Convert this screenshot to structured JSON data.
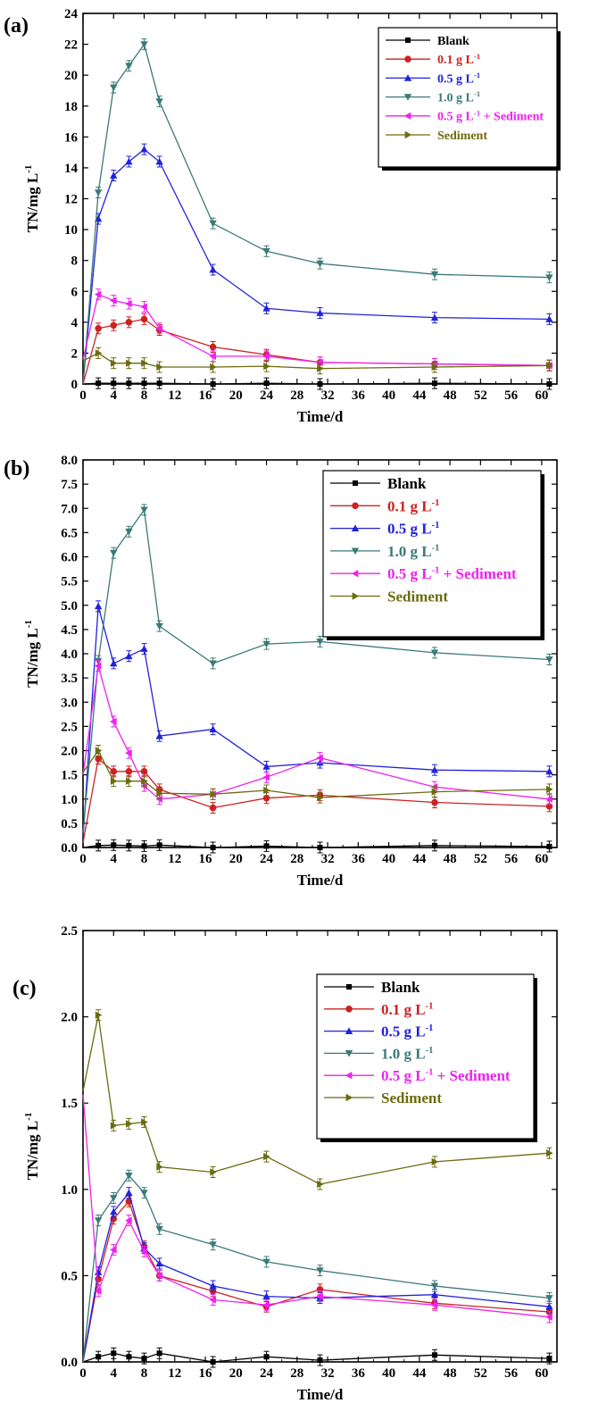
{
  "chart_data": [
    {
      "type": "line",
      "panel_label": "(a)",
      "xlabel": "Time/d",
      "ylabel": "TN/mg L",
      "ylabel_sup": "-1",
      "xlim": [
        0,
        62
      ],
      "ylim": [
        0,
        24
      ],
      "xticks": [
        0,
        4,
        8,
        12,
        16,
        20,
        24,
        28,
        32,
        36,
        40,
        44,
        48,
        52,
        56,
        60
      ],
      "yticks": [
        0,
        2,
        4,
        6,
        8,
        10,
        12,
        14,
        16,
        18,
        20,
        22,
        24
      ],
      "ytick_labels": [
        "0",
        "2",
        "4",
        "6",
        "8",
        "10",
        "12",
        "14",
        "16",
        "18",
        "20",
        "22",
        "24"
      ],
      "x": [
        0,
        2,
        4,
        6,
        8,
        10,
        17,
        24,
        31,
        46,
        61
      ],
      "legend_position": "top-right",
      "series": [
        {
          "name": "Blank",
          "sup": "",
          "color": "#000000",
          "marker": "square",
          "values": [
            0,
            0.05,
            0.05,
            0.05,
            0.05,
            0.05,
            0.0,
            0.05,
            0.0,
            0.05,
            0.0
          ]
        },
        {
          "name": "0.1 g L",
          "sup": "-1",
          "color": "#cc2222",
          "marker": "circle",
          "values": [
            0,
            3.6,
            3.8,
            4.0,
            4.2,
            3.5,
            2.4,
            1.9,
            1.4,
            1.3,
            1.2
          ]
        },
        {
          "name": "0.5 g L",
          "sup": "-1",
          "color": "#2222dd",
          "marker": "triangle-up",
          "values": [
            0,
            10.7,
            13.5,
            14.4,
            15.2,
            14.4,
            7.4,
            4.9,
            4.6,
            4.3,
            4.2
          ]
        },
        {
          "name": "1.0 g L",
          "sup": "-1",
          "color": "#3a7a78",
          "marker": "triangle-down",
          "values": [
            0,
            12.4,
            19.2,
            20.6,
            22.0,
            18.3,
            10.4,
            8.6,
            7.8,
            7.1,
            6.9
          ]
        },
        {
          "name": "0.5 g L",
          "sup": "-1",
          "suffix": " + Sediment",
          "color": "#ee22ee",
          "marker": "triangle-left",
          "values": [
            1.6,
            5.8,
            5.4,
            5.2,
            5.0,
            3.6,
            1.8,
            1.8,
            1.4,
            1.3,
            1.2
          ]
        },
        {
          "name": "Sediment",
          "sup": "",
          "color": "#6b6b10",
          "marker": "triangle-right",
          "values": [
            1.5,
            2.0,
            1.35,
            1.35,
            1.35,
            1.1,
            1.1,
            1.15,
            1.0,
            1.1,
            1.2
          ]
        }
      ]
    },
    {
      "type": "line",
      "panel_label": "(b)",
      "xlabel": "Time/d",
      "ylabel": "TN/mg L",
      "ylabel_sup": "-1",
      "xlim": [
        0,
        62
      ],
      "ylim": [
        0,
        8
      ],
      "xticks": [
        0,
        4,
        8,
        12,
        16,
        20,
        24,
        28,
        32,
        36,
        40,
        44,
        48,
        52,
        56,
        60
      ],
      "yticks": [
        0,
        0.5,
        1,
        1.5,
        2,
        2.5,
        3,
        3.5,
        4,
        4.5,
        5,
        5.5,
        6,
        6.5,
        7,
        7.5,
        8
      ],
      "ytick_labels": [
        "0.0",
        "0.5",
        "1.0",
        "1.5",
        "2.0",
        "2.5",
        "3.0",
        "3.5",
        "4.0",
        "4.5",
        "5.0",
        "5.5",
        "6.0",
        "6.5",
        "7.0",
        "7.5",
        "8.0"
      ],
      "x": [
        0,
        2,
        4,
        6,
        8,
        10,
        17,
        24,
        31,
        46,
        61
      ],
      "legend_position": "top-right",
      "series": [
        {
          "name": "Blank",
          "sup": "",
          "color": "#000000",
          "marker": "square",
          "values": [
            0,
            0.04,
            0.05,
            0.04,
            0.03,
            0.05,
            0.0,
            0.03,
            0.0,
            0.04,
            0.02
          ]
        },
        {
          "name": "0.1 g L",
          "sup": "-1",
          "color": "#cc2222",
          "marker": "circle",
          "values": [
            0.1,
            1.83,
            1.57,
            1.57,
            1.57,
            1.2,
            0.82,
            1.02,
            1.08,
            0.93,
            0.85
          ]
        },
        {
          "name": "0.5 g L",
          "sup": "-1",
          "color": "#2222dd",
          "marker": "triangle-up",
          "values": [
            0.2,
            4.98,
            3.8,
            3.95,
            4.1,
            2.3,
            2.44,
            1.67,
            1.75,
            1.6,
            1.57
          ]
        },
        {
          "name": "1.0 g L",
          "sup": "-1",
          "color": "#3a7a78",
          "marker": "triangle-down",
          "values": [
            0.3,
            3.85,
            6.08,
            6.52,
            6.97,
            4.57,
            3.8,
            4.2,
            4.25,
            4.02,
            3.88
          ]
        },
        {
          "name": "0.5 g L",
          "sup": "-1",
          "suffix": " + Sediment",
          "color": "#ee22ee",
          "marker": "triangle-left",
          "values": [
            1.5,
            3.75,
            2.6,
            1.95,
            1.27,
            1.0,
            1.1,
            1.45,
            1.85,
            1.25,
            1.0
          ]
        },
        {
          "name": "Sediment",
          "sup": "",
          "color": "#6b6b10",
          "marker": "triangle-right",
          "values": [
            1.55,
            2.0,
            1.37,
            1.37,
            1.37,
            1.12,
            1.1,
            1.18,
            1.03,
            1.15,
            1.2
          ]
        }
      ]
    },
    {
      "type": "line",
      "panel_label": "(c)",
      "xlabel": "Time/d",
      "ylabel": "TN/mg L",
      "ylabel_sup": "-1",
      "xlim": [
        0,
        62
      ],
      "ylim": [
        0,
        2.5
      ],
      "xticks": [
        0,
        4,
        8,
        12,
        16,
        20,
        24,
        28,
        32,
        36,
        40,
        44,
        48,
        52,
        56,
        60
      ],
      "yticks": [
        0,
        0.5,
        1,
        1.5,
        2,
        2.5
      ],
      "ytick_labels": [
        "0.0",
        "0.5",
        "1.0",
        "1.5",
        "2.0",
        "2.5"
      ],
      "x": [
        0,
        2,
        4,
        6,
        8,
        10,
        17,
        24,
        31,
        46,
        61
      ],
      "legend_position": "top-right",
      "series": [
        {
          "name": "Blank",
          "sup": "",
          "color": "#000000",
          "marker": "square",
          "values": [
            0,
            0.03,
            0.05,
            0.03,
            0.02,
            0.05,
            0.0,
            0.03,
            0.01,
            0.04,
            0.02
          ]
        },
        {
          "name": "0.1 g L",
          "sup": "-1",
          "color": "#cc2222",
          "marker": "circle",
          "values": [
            0,
            0.48,
            0.83,
            0.93,
            0.67,
            0.5,
            0.41,
            0.32,
            0.42,
            0.34,
            0.29
          ]
        },
        {
          "name": "0.5 g L",
          "sup": "-1",
          "color": "#2222dd",
          "marker": "triangle-up",
          "values": [
            0,
            0.52,
            0.87,
            0.98,
            0.66,
            0.57,
            0.44,
            0.38,
            0.37,
            0.39,
            0.32
          ]
        },
        {
          "name": "1.0 g L",
          "sup": "-1",
          "color": "#3a7a78",
          "marker": "triangle-down",
          "values": [
            0,
            0.82,
            0.95,
            1.08,
            0.98,
            0.77,
            0.68,
            0.58,
            0.53,
            0.44,
            0.37
          ]
        },
        {
          "name": "0.5 g L",
          "sup": "-1",
          "suffix": " + Sediment",
          "color": "#ee22ee",
          "marker": "triangle-left",
          "values": [
            1.55,
            0.41,
            0.65,
            0.82,
            0.64,
            0.5,
            0.36,
            0.33,
            0.38,
            0.33,
            0.26
          ]
        },
        {
          "name": "Sediment",
          "sup": "",
          "color": "#6b6b10",
          "marker": "triangle-right",
          "values": [
            1.57,
            2.01,
            1.37,
            1.38,
            1.39,
            1.13,
            1.1,
            1.19,
            1.03,
            1.16,
            1.21
          ]
        }
      ]
    }
  ]
}
